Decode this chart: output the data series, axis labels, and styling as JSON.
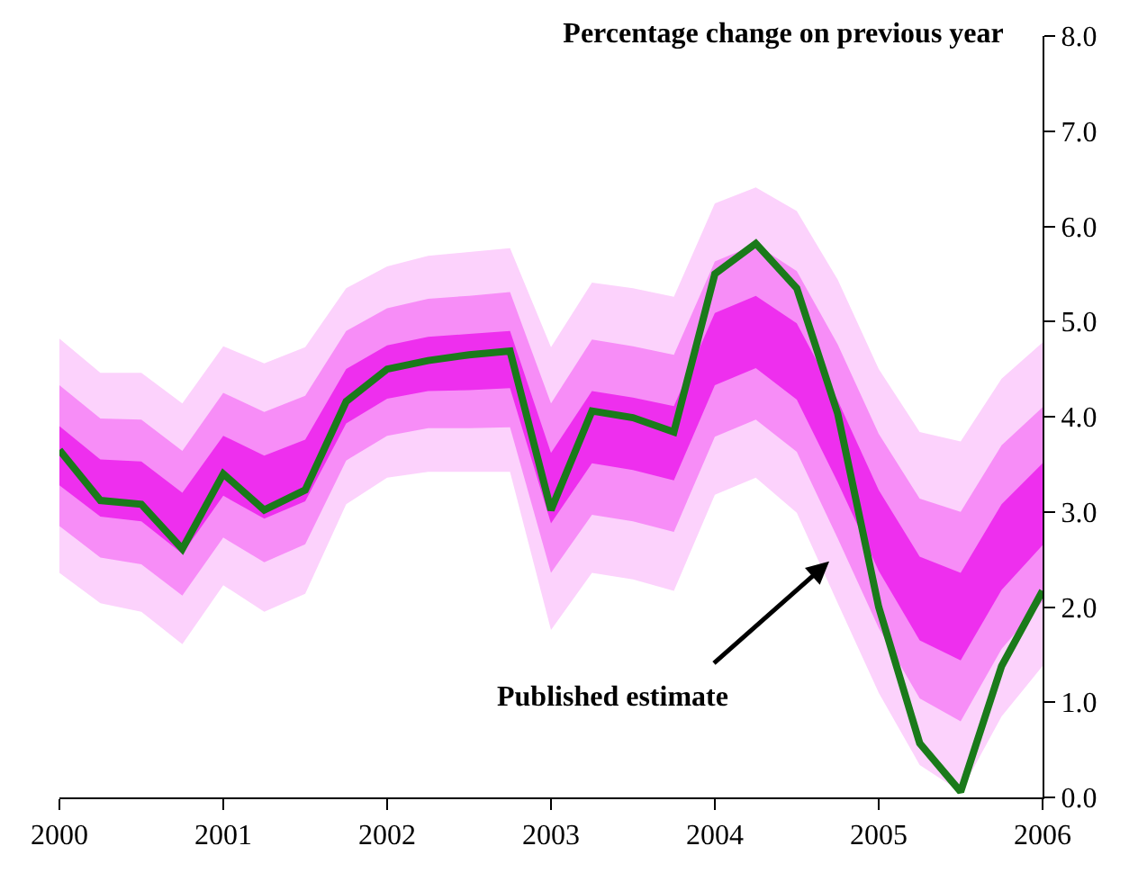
{
  "chart_data": {
    "type": "line",
    "title": "Percentage change on previous year",
    "x": [
      2000,
      2000.25,
      2000.5,
      2000.75,
      2001,
      2001.25,
      2001.5,
      2001.75,
      2002,
      2002.25,
      2002.5,
      2002.75,
      2003,
      2003.25,
      2003.5,
      2003.75,
      2004,
      2004.25,
      2004.5,
      2004.75,
      2005,
      2005.25,
      2005.5,
      2005.75,
      2006
    ],
    "series": [
      {
        "color": "#fcd2fc",
        "values": [
          null,
          null,
          null,
          null,
          null,
          null,
          null,
          null,
          null,
          null,
          null,
          null,
          null,
          null,
          null,
          null,
          null,
          null,
          null,
          null,
          null,
          null,
          null,
          null,
          null
        ],
        "lower": [
          2.36,
          2.04,
          1.95,
          1.61,
          2.23,
          1.95,
          2.14,
          3.08,
          3.36,
          3.42,
          3.42,
          3.42,
          1.76,
          2.36,
          2.29,
          2.17,
          3.18,
          3.36,
          2.99,
          2.04,
          1.1,
          0.34,
          0.06,
          0.85,
          1.38
        ],
        "upper": [
          4.82,
          4.46,
          4.46,
          4.14,
          4.74,
          4.56,
          4.73,
          5.35,
          5.58,
          5.69,
          5.73,
          5.77,
          4.73,
          5.41,
          5.35,
          5.26,
          6.24,
          6.41,
          6.16,
          5.44,
          4.5,
          3.84,
          3.74,
          4.4,
          4.78
        ]
      },
      {
        "color": "#f78df7",
        "values": [
          null,
          null,
          null,
          null,
          null,
          null,
          null,
          null,
          null,
          null,
          null,
          null,
          null,
          null,
          null,
          null,
          null,
          null,
          null,
          null,
          null,
          null,
          null,
          null,
          null
        ],
        "lower": [
          2.85,
          2.52,
          2.45,
          2.12,
          2.73,
          2.47,
          2.66,
          3.54,
          3.8,
          3.88,
          3.88,
          3.89,
          2.36,
          2.97,
          2.9,
          2.79,
          3.79,
          3.97,
          3.63,
          2.72,
          1.78,
          1.04,
          0.8,
          1.56,
          2.06
        ],
        "upper": [
          4.33,
          3.98,
          3.97,
          3.64,
          4.25,
          4.05,
          4.22,
          4.9,
          5.14,
          5.24,
          5.27,
          5.31,
          4.14,
          4.81,
          4.74,
          4.65,
          5.63,
          5.81,
          5.53,
          4.76,
          3.82,
          3.14,
          3.0,
          3.7,
          4.1
        ]
      },
      {
        "color": "#ee2fee",
        "values": [
          null,
          null,
          null,
          null,
          null,
          null,
          null,
          null,
          null,
          null,
          null,
          null,
          null,
          null,
          null,
          null,
          null,
          null,
          null,
          null,
          null,
          null,
          null,
          null,
          null
        ],
        "lower": [
          3.28,
          2.95,
          2.9,
          2.56,
          3.17,
          2.93,
          3.11,
          3.93,
          4.19,
          4.27,
          4.28,
          4.3,
          2.88,
          3.51,
          3.44,
          3.33,
          4.33,
          4.51,
          4.18,
          3.31,
          2.38,
          1.65,
          1.44,
          2.18,
          2.65
        ],
        "upper": [
          3.9,
          3.55,
          3.53,
          3.2,
          3.8,
          3.59,
          3.76,
          4.5,
          4.75,
          4.84,
          4.87,
          4.9,
          3.62,
          4.27,
          4.2,
          4.11,
          5.09,
          5.27,
          4.98,
          4.17,
          3.23,
          2.53,
          2.36,
          3.08,
          3.51
        ]
      },
      {
        "color": "#1a7a1a",
        "values": [
          3.65,
          3.12,
          3.08,
          2.61,
          3.4,
          3.02,
          3.23,
          4.16,
          4.5,
          4.59,
          4.65,
          4.69,
          3.02,
          4.06,
          3.99,
          3.84,
          5.5,
          5.82,
          5.35,
          4.03,
          2.0,
          0.57,
          0.06,
          1.38,
          2.17
        ]
      }
    ],
    "annotations": [
      "Published estimate"
    ],
    "xlim": [
      2000,
      2006
    ],
    "xticks": [
      2000,
      2001,
      2002,
      2003,
      2004,
      2005,
      2006
    ],
    "ylim": [
      0,
      8
    ],
    "yticks": [
      {
        "value": 0,
        "label": "0.0"
      },
      {
        "value": 1,
        "label": "1.0"
      },
      {
        "value": 2,
        "label": "2.0"
      },
      {
        "value": 3,
        "label": "3.0"
      },
      {
        "value": 4,
        "label": "4.0"
      },
      {
        "value": 5,
        "label": "5.0"
      },
      {
        "value": 6,
        "label": "6.0"
      },
      {
        "value": 7,
        "label": "7.0"
      },
      {
        "value": 8,
        "label": "8.0"
      }
    ],
    "marker": "none",
    "line_style": "solid"
  }
}
